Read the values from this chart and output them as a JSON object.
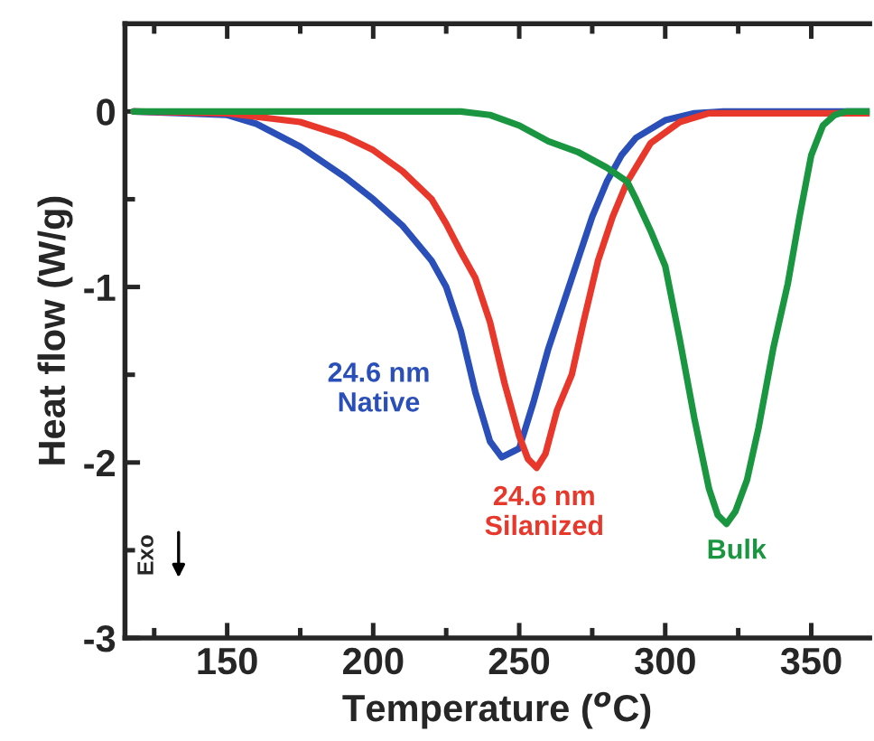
{
  "chart_data": {
    "type": "line",
    "xlabel": "Temperature ($^{o}$C)",
    "ylabel": "Heat flow (W/g)",
    "xlim": [
      115,
      370
    ],
    "ylim": [
      -3,
      0.5
    ],
    "xticks": [
      {
        "value": 125,
        "label": null
      },
      150,
      {
        "value": 175,
        "label": null
      },
      200,
      {
        "value": 225,
        "label": null
      },
      250,
      {
        "value": 275,
        "label": null
      },
      300,
      {
        "value": 325,
        "label": null
      },
      350
    ],
    "yticks": [
      -3,
      {
        "value": -2.5,
        "label": null
      },
      -2,
      {
        "value": -1.5,
        "label": null
      },
      -1,
      {
        "value": -0.5,
        "label": null
      },
      0
    ],
    "grid": false,
    "legend": false,
    "marker": "none",
    "line_style": "solid",
    "annotations": [
      "Exo"
    ],
    "series": [
      {
        "name": "24.6 nm\nNative",
        "color": "#2a4fb8",
        "x": [
          118,
          150,
          160,
          175,
          190,
          200,
          210,
          220,
          225,
          230,
          235,
          240,
          244,
          250,
          255,
          260,
          265,
          270,
          275,
          280,
          285,
          290,
          300,
          310,
          320,
          370
        ],
        "values": [
          0,
          -0.02,
          -0.07,
          -0.2,
          -0.37,
          -0.5,
          -0.65,
          -0.85,
          -1.0,
          -1.25,
          -1.6,
          -1.88,
          -1.97,
          -1.92,
          -1.65,
          -1.35,
          -1.1,
          -0.85,
          -0.6,
          -0.4,
          -0.25,
          -0.15,
          -0.05,
          -0.01,
          0,
          0
        ]
      },
      {
        "name": "24.6 nm\nSilanized",
        "color": "#e8382c",
        "x": [
          118,
          150,
          175,
          190,
          200,
          210,
          220,
          225,
          230,
          235,
          240,
          245,
          250,
          253,
          256,
          259,
          263,
          268,
          272,
          277,
          282,
          287,
          295,
          305,
          315,
          370
        ],
        "values": [
          0,
          -0.01,
          -0.06,
          -0.14,
          -0.22,
          -0.34,
          -0.5,
          -0.64,
          -0.8,
          -0.95,
          -1.2,
          -1.55,
          -1.85,
          -1.98,
          -2.03,
          -1.95,
          -1.7,
          -1.5,
          -1.2,
          -0.85,
          -0.6,
          -0.4,
          -0.18,
          -0.06,
          -0.01,
          -0.01
        ]
      },
      {
        "name": "Bulk",
        "color": "#1a9641",
        "x": [
          118,
          230,
          240,
          250,
          260,
          270,
          280,
          287,
          290,
          295,
          300,
          305,
          310,
          315,
          318,
          321,
          324,
          328,
          332,
          337,
          342,
          346,
          350,
          354,
          358,
          362,
          370
        ],
        "values": [
          0,
          0,
          -0.02,
          -0.08,
          -0.17,
          -0.23,
          -0.32,
          -0.4,
          -0.5,
          -0.68,
          -0.88,
          -1.3,
          -1.75,
          -2.15,
          -2.3,
          -2.35,
          -2.28,
          -2.1,
          -1.8,
          -1.35,
          -0.98,
          -0.6,
          -0.25,
          -0.08,
          -0.02,
          0,
          0
        ]
      }
    ]
  }
}
